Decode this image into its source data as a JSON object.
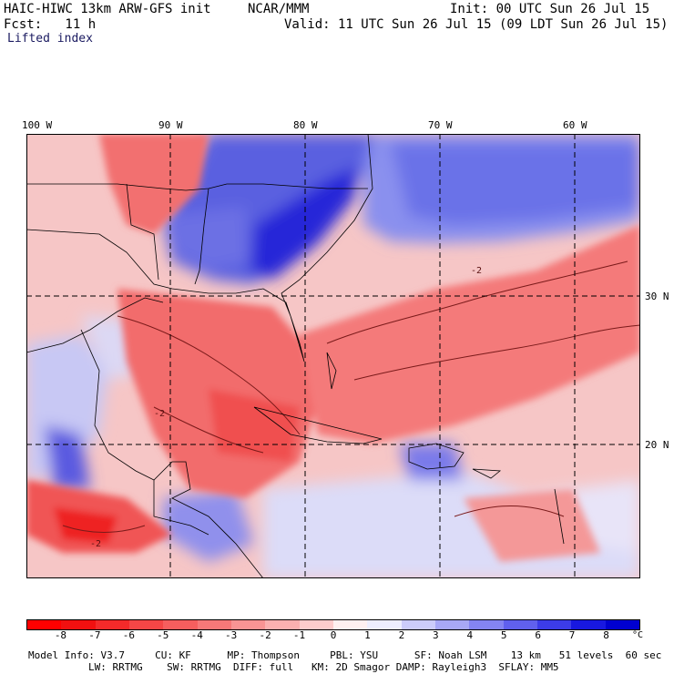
{
  "header": {
    "model_title": "HAIC-HIWC 13km ARW-GFS init",
    "org": "NCAR/MMM",
    "init_time": "Init: 00 UTC Sun 26 Jul 15",
    "forecast_label": "Fcst:   11 h",
    "valid_time": "Valid: 11 UTC Sun 26 Jul 15 (09 LDT Sun 26 Jul 15)",
    "field_name": "Lifted index"
  },
  "map": {
    "lon_labels": [
      "100 W",
      "90 W",
      "80 W",
      "70 W",
      "60 W"
    ],
    "lat_labels": [
      "30 N",
      "20 N"
    ],
    "contour_label": "-2"
  },
  "colorbar": {
    "ticks": [
      "-8",
      "-7",
      "-6",
      "-5",
      "-4",
      "-3",
      "-2",
      "-1",
      "0",
      "1",
      "2",
      "3",
      "4",
      "5",
      "6",
      "7",
      "8"
    ],
    "unit": "°C",
    "colors": [
      "#f21010",
      "#f42a2a",
      "#f54646",
      "#f65e5e",
      "#f77878",
      "#f99494",
      "#fbb0b0",
      "#fdcccc",
      "#fef0f0",
      "#eeeefe",
      "#ccccfa",
      "#a8a8f6",
      "#8484f2",
      "#6060ee",
      "#3c3ce8",
      "#1818e0",
      "#0000d0"
    ]
  },
  "footer": {
    "line1": "Model Info: V3.7     CU: KF      MP: Thompson     PBL: YSU      SF: Noah LSM    13 km   51 levels  60 sec",
    "line2": "LW: RRTMG    SW: RRTMG  DIFF: full   KM: 2D Smagor DAMP: Rayleigh3  SFLAY: MM5"
  }
}
